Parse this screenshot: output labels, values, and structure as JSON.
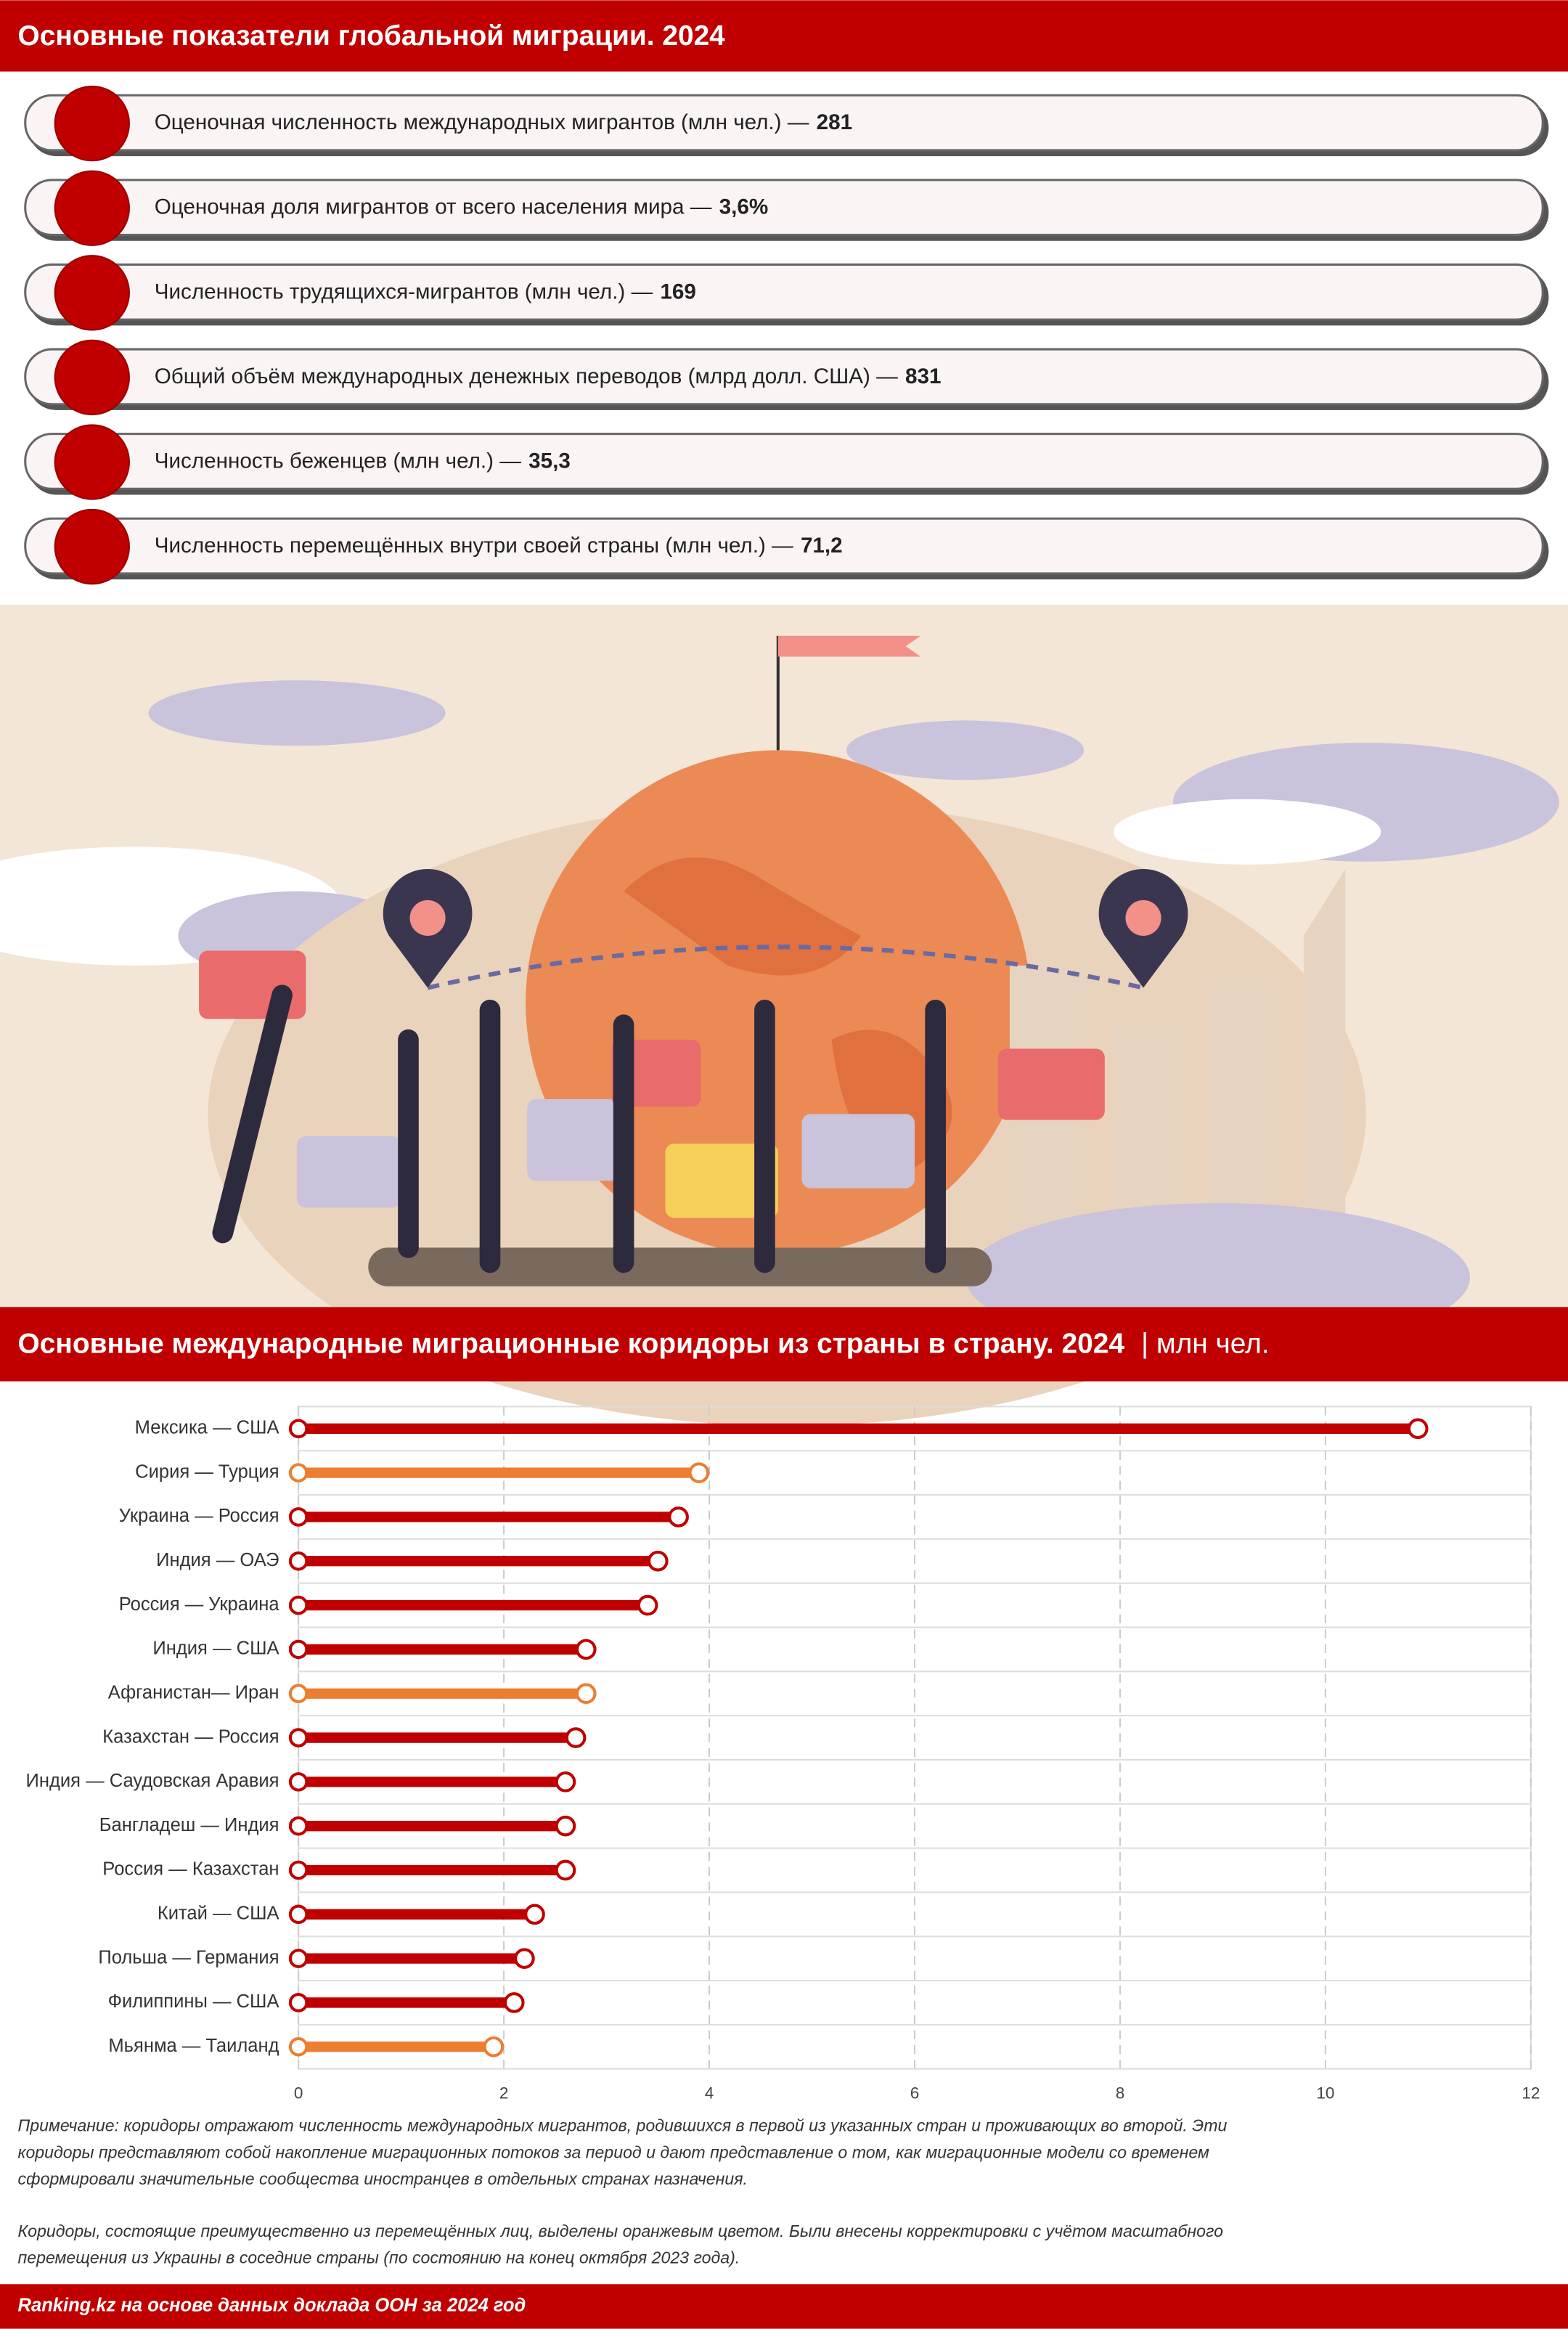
{
  "header": {
    "title": "Основные показатели глобальной миграции. 2024"
  },
  "stats": [
    {
      "label": "Оценочная численность международных мигрантов (млн чел.) —",
      "value": "281"
    },
    {
      "label": "Оценочная доля мигрантов от всего населения мира —",
      "value": "3,6%"
    },
    {
      "label": "Численность трудящихся-мигрантов (млн чел.) —",
      "value": "169"
    },
    {
      "label": "Общий объём международных денежных переводов (млрд долл. США) —",
      "value": "831"
    },
    {
      "label": "Численность беженцев (млн чел.) —",
      "value": "35,3"
    },
    {
      "label": "Численность перемещённых внутри своей страны (млн чел.) —",
      "value": "71,2"
    }
  ],
  "chart_data": {
    "type": "lollipop",
    "title": "Основные международные миграционные коридоры из страны в страну. 2024",
    "unit": "| млн чел.",
    "categories": [
      "Мексика — США",
      "Сирия — Турция",
      "Украина — Россия",
      "Индия — ОАЭ",
      "Россия — Украина",
      "Индия — США",
      "Афганистан— Иран",
      "Казахстан — Россия",
      "Индия — Саудовская Аравия",
      "Бангладеш — Индия",
      "Россия — Казахстан",
      "Китай — США",
      "Польша — Германия",
      "Филиппины — США",
      "Мьянма — Таиланд"
    ],
    "values": [
      10.9,
      3.9,
      3.7,
      3.5,
      3.4,
      2.8,
      2.8,
      2.7,
      2.6,
      2.6,
      2.6,
      2.3,
      2.2,
      2.1,
      1.9
    ],
    "colors": [
      "#c00000",
      "#ed7d31",
      "#c00000",
      "#c00000",
      "#c00000",
      "#c00000",
      "#ed7d31",
      "#c00000",
      "#c00000",
      "#c00000",
      "#c00000",
      "#c00000",
      "#c00000",
      "#c00000",
      "#ed7d31"
    ],
    "xlim": [
      0,
      12
    ],
    "xticks": [
      0,
      2,
      4,
      6,
      8,
      10,
      12
    ],
    "grid": true
  },
  "notes": [
    [
      "Примечание: коридоры отражают численность международных мигрантов, родившихся в первой из указанных стран и проживающих во второй. Эти",
      "коридоры представляют собой накопление миграционных потоков за период и дают представление о том, как миграционные модели со временем",
      "сформировали значительные сообщества иностранцев в отдельных странах назначения."
    ],
    [
      "Коридоры, состоящие преимущественно из перемещённых лиц, выделены оранжевым цветом. Были внесены корректировки с учётом масштабного",
      "перемещения из Украины в соседние страны (по состоянию на конец октября 2023 года)."
    ]
  ],
  "footer": {
    "source": "Ranking.kz на основе данных доклада ООН за 2024 год"
  }
}
